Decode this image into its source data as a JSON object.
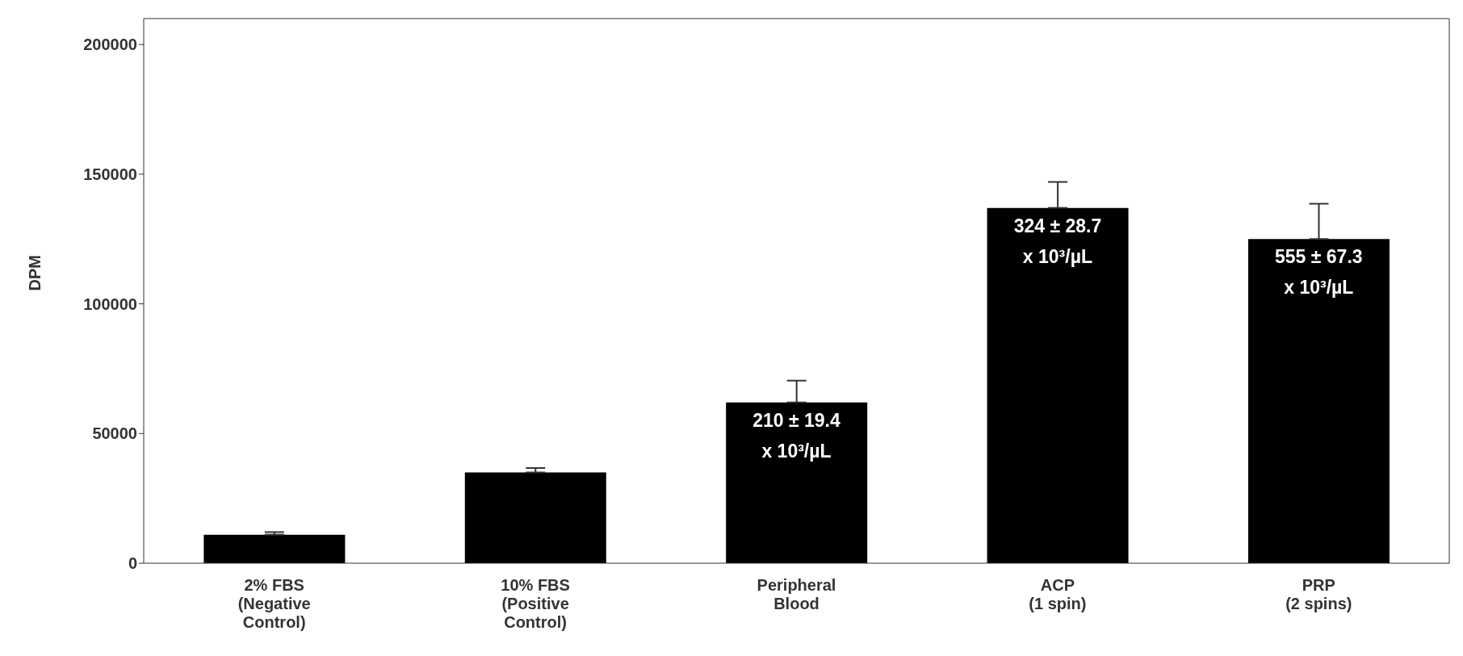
{
  "chart_data": {
    "type": "bar",
    "ylabel": "DPM",
    "categories": [
      "2% FBS\n(Negative\nControl)",
      "10% FBS\n(Positive\nControl)",
      "Peripheral\nBlood",
      "ACP\n(1 spin)",
      "PRP\n(2 spins)"
    ],
    "values": [
      11000,
      35000,
      62000,
      137000,
      125000
    ],
    "errors": [
      [
        11000,
        12000
      ],
      [
        35000,
        36700
      ],
      [
        62000,
        70400
      ],
      [
        137000,
        147000
      ],
      [
        125000,
        138600
      ]
    ],
    "color": "#000000",
    "ylim": [
      0,
      210000
    ],
    "yticks": [
      0,
      50000,
      100000,
      150000,
      200000
    ],
    "grid": false,
    "legend": false,
    "annotations": [
      {
        "text": "210 ± 19.4\nx 10³/µL",
        "x": "Peripheral\nBlood",
        "y": 62000
      },
      {
        "text": "324 ± 28.7\nx 10³/µL",
        "x": "ACP\n(1 spin)",
        "y": 137000
      },
      {
        "text": "555 ± 67.3\nx 10³/µL",
        "x": "PRP\n(2 spins)",
        "y": 125000
      }
    ]
  }
}
